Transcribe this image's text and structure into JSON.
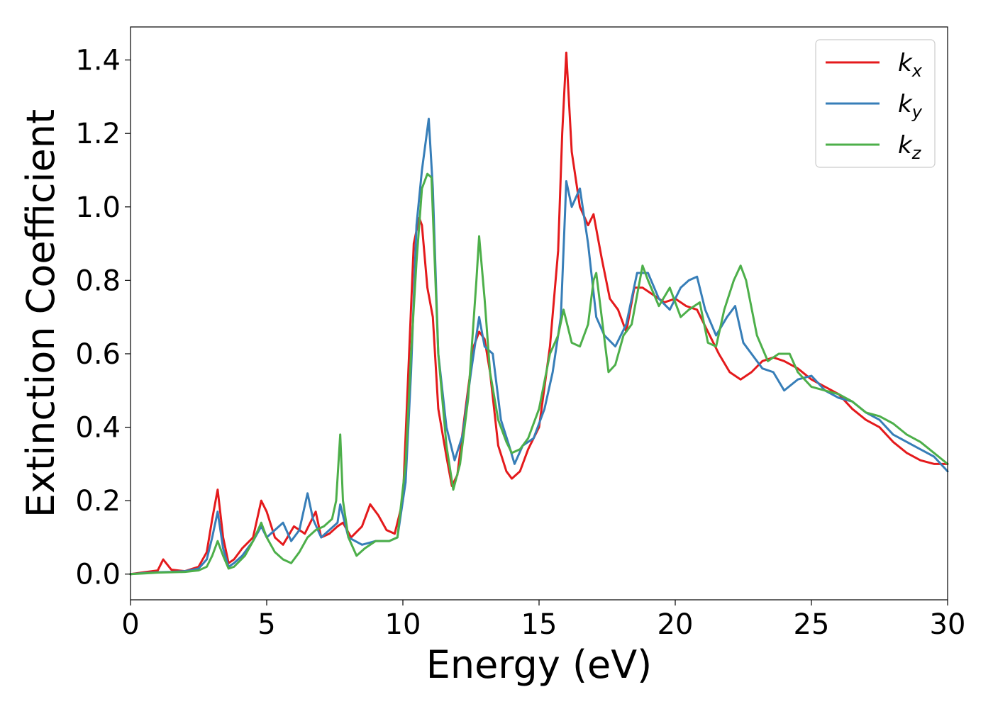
{
  "chart_data": {
    "type": "line",
    "title": "",
    "xlabel": "Energy (eV)",
    "ylabel": "Extinction Coefficient",
    "xlim": [
      0,
      30
    ],
    "ylim": [
      -0.07,
      1.49
    ],
    "xticks": [
      0,
      5,
      10,
      15,
      20,
      25,
      30
    ],
    "xtick_labels": [
      "0",
      "5",
      "10",
      "15",
      "20",
      "25",
      "30"
    ],
    "yticks": [
      0.0,
      0.2,
      0.4,
      0.6,
      0.8,
      1.0,
      1.2,
      1.4
    ],
    "ytick_labels": [
      "0.0",
      "0.2",
      "0.4",
      "0.6",
      "0.8",
      "1.0",
      "1.2",
      "1.4"
    ],
    "grid": false,
    "legend_position": "top-right",
    "series": [
      {
        "name": "k",
        "subscript": "x",
        "color": "#e41a1c",
        "x": [
          0,
          0.5,
          1.0,
          1.2,
          1.5,
          2.0,
          2.5,
          2.8,
          3.0,
          3.2,
          3.4,
          3.6,
          3.8,
          4.1,
          4.5,
          4.8,
          5.0,
          5.3,
          5.6,
          6.0,
          6.4,
          6.8,
          7.0,
          7.3,
          7.6,
          7.8,
          8.1,
          8.5,
          8.8,
          9.1,
          9.4,
          9.7,
          10.0,
          10.2,
          10.4,
          10.6,
          10.7,
          10.9,
          11.1,
          11.3,
          11.6,
          11.8,
          12.0,
          12.3,
          12.6,
          12.8,
          13.0,
          13.2,
          13.5,
          13.8,
          14.0,
          14.3,
          14.6,
          15.0,
          15.4,
          15.7,
          15.85,
          16.0,
          16.2,
          16.5,
          16.8,
          17.0,
          17.3,
          17.6,
          17.9,
          18.2,
          18.5,
          18.8,
          19.2,
          19.6,
          20.0,
          20.4,
          20.8,
          21.2,
          21.6,
          22.0,
          22.4,
          22.8,
          23.2,
          23.6,
          24.0,
          24.5,
          25.0,
          25.5,
          26.0,
          26.5,
          27.0,
          27.5,
          28.0,
          28.5,
          29.0,
          29.5,
          30.0
        ],
        "y": [
          0.0,
          0.005,
          0.01,
          0.04,
          0.012,
          0.008,
          0.02,
          0.06,
          0.15,
          0.23,
          0.1,
          0.03,
          0.04,
          0.07,
          0.1,
          0.2,
          0.17,
          0.1,
          0.08,
          0.13,
          0.11,
          0.17,
          0.1,
          0.11,
          0.13,
          0.14,
          0.1,
          0.13,
          0.19,
          0.16,
          0.12,
          0.11,
          0.2,
          0.55,
          0.9,
          0.97,
          0.95,
          0.78,
          0.7,
          0.45,
          0.32,
          0.24,
          0.27,
          0.45,
          0.62,
          0.66,
          0.64,
          0.55,
          0.35,
          0.28,
          0.26,
          0.28,
          0.34,
          0.4,
          0.62,
          0.88,
          1.2,
          1.42,
          1.15,
          1.0,
          0.95,
          0.98,
          0.86,
          0.75,
          0.72,
          0.66,
          0.78,
          0.78,
          0.76,
          0.74,
          0.75,
          0.73,
          0.72,
          0.66,
          0.6,
          0.55,
          0.53,
          0.55,
          0.58,
          0.59,
          0.58,
          0.56,
          0.53,
          0.51,
          0.49,
          0.45,
          0.42,
          0.4,
          0.36,
          0.33,
          0.31,
          0.3,
          0.3
        ]
      },
      {
        "name": "k",
        "subscript": "y",
        "color": "#377eb8",
        "x": [
          0,
          0.5,
          1.0,
          1.5,
          2.0,
          2.5,
          2.8,
          3.0,
          3.2,
          3.4,
          3.6,
          3.8,
          4.1,
          4.5,
          4.8,
          5.0,
          5.3,
          5.6,
          5.9,
          6.2,
          6.5,
          6.7,
          7.0,
          7.3,
          7.6,
          7.7,
          8.0,
          8.5,
          9.0,
          9.5,
          9.8,
          10.1,
          10.3,
          10.5,
          10.7,
          10.95,
          11.1,
          11.3,
          11.6,
          11.9,
          12.2,
          12.5,
          12.8,
          13.0,
          13.3,
          13.6,
          13.9,
          14.1,
          14.4,
          14.8,
          15.2,
          15.5,
          15.8,
          16.0,
          16.2,
          16.5,
          16.8,
          17.1,
          17.4,
          17.8,
          18.2,
          18.6,
          19.0,
          19.4,
          19.8,
          20.2,
          20.5,
          20.8,
          21.1,
          21.5,
          21.9,
          22.2,
          22.5,
          22.8,
          23.2,
          23.6,
          24.0,
          24.5,
          25.0,
          25.5,
          26.0,
          26.5,
          27.0,
          27.5,
          28.0,
          28.5,
          29.0,
          29.5,
          30.0
        ],
        "y": [
          0.0,
          0.003,
          0.005,
          0.006,
          0.008,
          0.015,
          0.04,
          0.1,
          0.17,
          0.07,
          0.02,
          0.03,
          0.05,
          0.09,
          0.13,
          0.1,
          0.12,
          0.14,
          0.09,
          0.12,
          0.22,
          0.15,
          0.1,
          0.12,
          0.14,
          0.19,
          0.1,
          0.08,
          0.09,
          0.09,
          0.1,
          0.25,
          0.55,
          0.95,
          1.1,
          1.24,
          1.05,
          0.6,
          0.4,
          0.31,
          0.38,
          0.55,
          0.7,
          0.62,
          0.6,
          0.42,
          0.35,
          0.3,
          0.35,
          0.37,
          0.45,
          0.55,
          0.7,
          1.07,
          1.0,
          1.05,
          0.9,
          0.7,
          0.65,
          0.62,
          0.68,
          0.82,
          0.82,
          0.75,
          0.72,
          0.78,
          0.8,
          0.81,
          0.72,
          0.65,
          0.7,
          0.73,
          0.63,
          0.6,
          0.56,
          0.55,
          0.5,
          0.53,
          0.54,
          0.5,
          0.48,
          0.47,
          0.44,
          0.42,
          0.38,
          0.36,
          0.34,
          0.32,
          0.28
        ]
      },
      {
        "name": "k",
        "subscript": "z",
        "color": "#4daf4a",
        "x": [
          0,
          0.5,
          1.0,
          1.5,
          2.0,
          2.5,
          2.8,
          3.0,
          3.2,
          3.4,
          3.6,
          3.8,
          4.2,
          4.5,
          4.8,
          5.0,
          5.3,
          5.6,
          5.9,
          6.2,
          6.5,
          6.8,
          7.1,
          7.4,
          7.55,
          7.7,
          7.8,
          8.0,
          8.3,
          8.6,
          9.0,
          9.5,
          9.8,
          10.1,
          10.3,
          10.5,
          10.7,
          10.9,
          11.05,
          11.3,
          11.6,
          11.85,
          12.1,
          12.4,
          12.7,
          12.8,
          13.0,
          13.2,
          13.5,
          13.8,
          14.0,
          14.3,
          14.6,
          15.0,
          15.4,
          15.7,
          15.9,
          16.2,
          16.5,
          16.8,
          17.0,
          17.1,
          17.3,
          17.55,
          17.8,
          18.1,
          18.4,
          18.8,
          19.0,
          19.4,
          19.8,
          20.2,
          20.5,
          20.9,
          21.2,
          21.5,
          21.8,
          22.15,
          22.4,
          22.6,
          23.0,
          23.4,
          23.8,
          24.2,
          24.5,
          25.0,
          25.5,
          26.0,
          26.5,
          27.0,
          27.5,
          28.0,
          28.5,
          29.0,
          29.5,
          30.0
        ],
        "y": [
          0.0,
          0.002,
          0.004,
          0.005,
          0.006,
          0.01,
          0.02,
          0.05,
          0.09,
          0.05,
          0.015,
          0.02,
          0.05,
          0.09,
          0.14,
          0.1,
          0.06,
          0.04,
          0.03,
          0.06,
          0.1,
          0.12,
          0.13,
          0.15,
          0.2,
          0.38,
          0.2,
          0.1,
          0.05,
          0.07,
          0.09,
          0.09,
          0.1,
          0.3,
          0.6,
          0.85,
          1.05,
          1.09,
          1.08,
          0.6,
          0.35,
          0.23,
          0.3,
          0.48,
          0.8,
          0.92,
          0.75,
          0.55,
          0.42,
          0.36,
          0.33,
          0.34,
          0.37,
          0.45,
          0.6,
          0.65,
          0.72,
          0.63,
          0.62,
          0.68,
          0.8,
          0.82,
          0.7,
          0.55,
          0.57,
          0.65,
          0.68,
          0.84,
          0.8,
          0.73,
          0.78,
          0.7,
          0.72,
          0.74,
          0.63,
          0.62,
          0.72,
          0.8,
          0.84,
          0.8,
          0.65,
          0.58,
          0.6,
          0.6,
          0.55,
          0.51,
          0.5,
          0.49,
          0.47,
          0.44,
          0.43,
          0.41,
          0.38,
          0.36,
          0.33,
          0.3
        ]
      }
    ]
  }
}
